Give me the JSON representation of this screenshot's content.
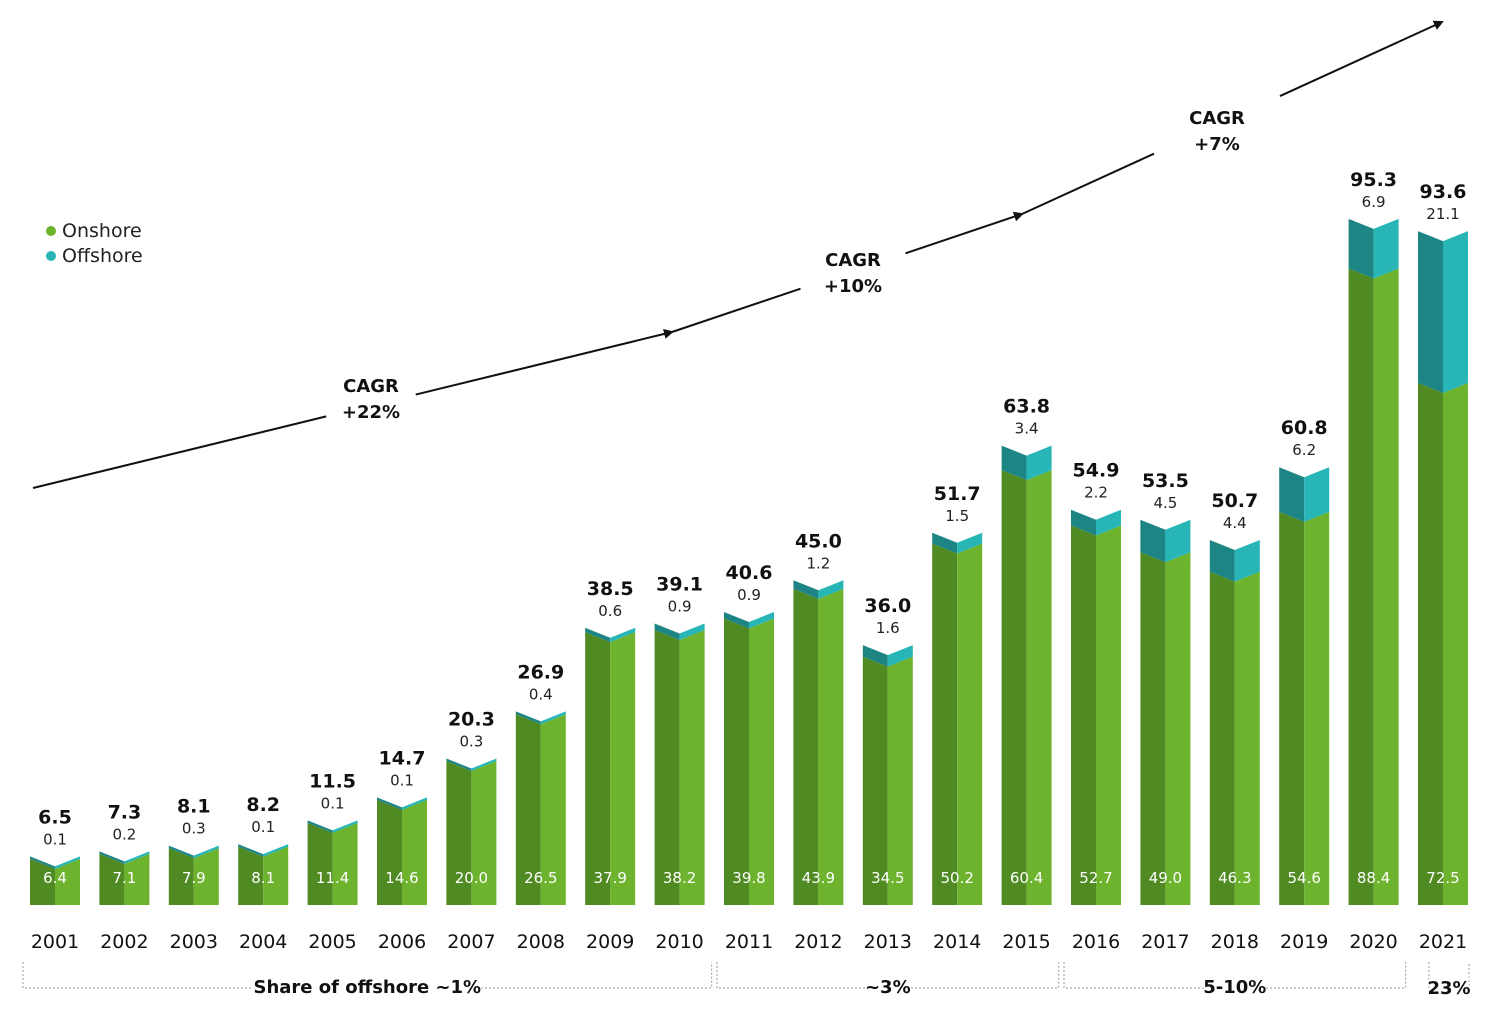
{
  "chart_data": {
    "type": "bar",
    "stacked": true,
    "categories": [
      "2001",
      "2002",
      "2003",
      "2004",
      "2005",
      "2006",
      "2007",
      "2008",
      "2009",
      "2010",
      "2011",
      "2012",
      "2013",
      "2014",
      "2015",
      "2016",
      "2017",
      "2018",
      "2019",
      "2020",
      "2021"
    ],
    "totals": [
      "6.5",
      "7.3",
      "8.1",
      "8.2",
      "11.5",
      "14.7",
      "20.3",
      "26.9",
      "38.5",
      "39.1",
      "40.6",
      "45.0",
      "36.0",
      "51.7",
      "63.8",
      "54.9",
      "53.5",
      "50.7",
      "60.8",
      "95.3",
      "93.6"
    ],
    "series": [
      {
        "name": "Onshore",
        "color": "#6db32e",
        "values": [
          6.4,
          7.1,
          7.9,
          8.1,
          11.4,
          14.6,
          20.0,
          26.5,
          37.9,
          38.2,
          39.8,
          43.9,
          34.5,
          50.2,
          60.4,
          52.7,
          49.0,
          46.3,
          54.6,
          88.4,
          72.5
        ],
        "labels": [
          "6.4",
          "7.1",
          "7.9",
          "8.1",
          "11.4",
          "14.6",
          "20.0",
          "26.5",
          "37.9",
          "38.2",
          "39.8",
          "43.9",
          "34.5",
          "50.2",
          "60.4",
          "52.7",
          "49.0",
          "46.3",
          "54.6",
          "88.4",
          "72.5"
        ]
      },
      {
        "name": "Offshore",
        "color": "#27b5b5",
        "values": [
          0.1,
          0.2,
          0.3,
          0.1,
          0.1,
          0.1,
          0.3,
          0.4,
          0.6,
          0.9,
          0.9,
          1.2,
          1.6,
          1.5,
          3.4,
          2.2,
          4.5,
          4.4,
          6.2,
          6.9,
          21.1
        ],
        "labels": [
          "0.1",
          "0.2",
          "0.3",
          "0.1",
          "0.1",
          "0.1",
          "0.3",
          "0.4",
          "0.6",
          "0.9",
          "0.9",
          "1.2",
          "1.6",
          "1.5",
          "3.4",
          "2.2",
          "4.5",
          "4.4",
          "6.2",
          "6.9",
          "21.1"
        ]
      }
    ],
    "legend": [
      {
        "label": "Onshore",
        "color": "#6db32e"
      },
      {
        "label": "Offshore",
        "color": "#27b5b5"
      }
    ],
    "legend_position": "left",
    "cagr_annotations": [
      {
        "line1": "CAGR",
        "line2": "+22%",
        "from": "2001",
        "to": "2010"
      },
      {
        "line1": "CAGR",
        "line2": "+10%",
        "from": "2010",
        "to": "2015"
      },
      {
        "line1": "CAGR",
        "line2": "+7%",
        "from": "2015",
        "to": "2021"
      }
    ],
    "share_brackets": [
      {
        "label": "Share of offshore ~1%",
        "from": "2001",
        "to": "2010"
      },
      {
        "label": "~3%",
        "from": "2011",
        "to": "2015"
      },
      {
        "label": "5-10%",
        "from": "2016",
        "to": "2020"
      },
      {
        "label": "23%",
        "from": "2021",
        "to": "2021"
      }
    ],
    "ylim": [
      0,
      100
    ]
  }
}
